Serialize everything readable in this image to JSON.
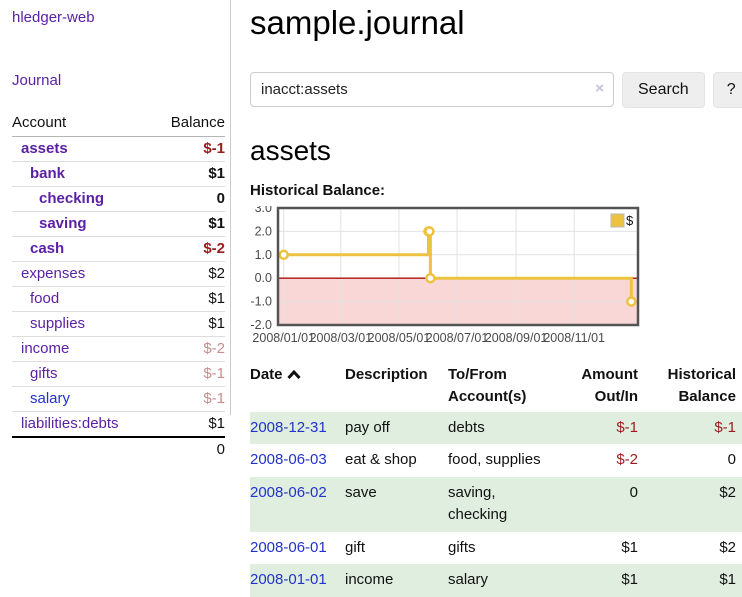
{
  "colors": {
    "purple": "#5b21a5",
    "blue": "#2233cc",
    "neg": "#9e1b1b",
    "negmuted": "#c98d8d",
    "rowgreen": "#dfeede",
    "gold": "#edc240"
  },
  "sidebar": {
    "brand": "hledger-web",
    "journal_label": "Journal",
    "table": {
      "headers": {
        "account": "Account",
        "balance": "Balance"
      },
      "rows": [
        {
          "name": "assets",
          "balance": "$-1",
          "indent": 0,
          "bold": true,
          "balance_style": "neg",
          "link_style": "purple"
        },
        {
          "name": "bank",
          "balance": "$1",
          "indent": 1,
          "bold": true,
          "balance_style": "pos",
          "link_style": "purple"
        },
        {
          "name": "checking",
          "balance": "0",
          "indent": 2,
          "bold": true,
          "balance_style": "pos",
          "link_style": "purple"
        },
        {
          "name": "saving",
          "balance": "$1",
          "indent": 2,
          "bold": true,
          "balance_style": "pos",
          "link_style": "purple"
        },
        {
          "name": "cash",
          "balance": "$-2",
          "indent": 1,
          "bold": true,
          "balance_style": "neg",
          "link_style": "purple"
        },
        {
          "name": "expenses",
          "balance": "$2",
          "indent": 0,
          "bold": false,
          "balance_style": "pos",
          "link_style": "purple"
        },
        {
          "name": "food",
          "balance": "$1",
          "indent": 1,
          "bold": false,
          "balance_style": "pos",
          "link_style": "purple"
        },
        {
          "name": "supplies",
          "balance": "$1",
          "indent": 1,
          "bold": false,
          "balance_style": "pos",
          "link_style": "purple"
        },
        {
          "name": "income",
          "balance": "$-2",
          "indent": 0,
          "bold": false,
          "balance_style": "negmuted",
          "link_style": "purple"
        },
        {
          "name": "gifts",
          "balance": "$-1",
          "indent": 1,
          "bold": false,
          "balance_style": "negmuted",
          "link_style": "purple"
        },
        {
          "name": "salary",
          "balance": "$-1",
          "indent": 1,
          "bold": false,
          "balance_style": "negmuted",
          "link_style": "blue"
        },
        {
          "name": "liabilities:debts",
          "balance": "$1",
          "indent": 0,
          "bold": false,
          "balance_style": "pos",
          "link_style": "purple"
        }
      ],
      "total": "0"
    }
  },
  "header": {
    "title": "sample.journal"
  },
  "search": {
    "query": "inacct:assets",
    "clear_icon": "×",
    "search_label": "Search",
    "help_label": "?"
  },
  "account_page": {
    "title": "assets",
    "chart_label": "Historical Balance:"
  },
  "chart_data": {
    "type": "line",
    "title": "Historical Balance",
    "step": true,
    "series": [
      {
        "name": "$",
        "color": "#edc240",
        "points": [
          {
            "date": "2008-01-01",
            "x": 0,
            "y": 1
          },
          {
            "date": "2008-06-01",
            "x": 152,
            "y": 2
          },
          {
            "date": "2008-06-02",
            "x": 153,
            "y": 2
          },
          {
            "date": "2008-06-03",
            "x": 154,
            "y": 0
          },
          {
            "date": "2008-12-31",
            "x": 365,
            "y": -1
          }
        ]
      }
    ],
    "x_ticks": [
      {
        "v": 0,
        "label": "2008/01/01"
      },
      {
        "v": 60,
        "label": "2008/03/01"
      },
      {
        "v": 121,
        "label": "2008/05/01"
      },
      {
        "v": 182,
        "label": "2008/07/01"
      },
      {
        "v": 244,
        "label": "2008/09/01"
      },
      {
        "v": 305,
        "label": "2008/11/01"
      }
    ],
    "y_ticks": [
      {
        "v": 3,
        "label": "3.0"
      },
      {
        "v": 2,
        "label": "2.0"
      },
      {
        "v": 1,
        "label": "1.0"
      },
      {
        "v": 0,
        "label": "0.0"
      },
      {
        "v": -1,
        "label": "-1.0"
      },
      {
        "v": -2,
        "label": "-2.0"
      }
    ],
    "xlim": [
      -6,
      372
    ],
    "ylim": [
      -2,
      3
    ],
    "grid": true,
    "negative_region_color": "#f9d7d7",
    "zero_line_color": "#aa1111",
    "legend": {
      "label": "$",
      "box_color": "#edc240",
      "position": "top-right"
    }
  },
  "register": {
    "columns": [
      "Date",
      "Description",
      "To/From Account(s)",
      "Amount Out/In",
      "Historical Balance"
    ],
    "sort": "ascending",
    "rows": [
      {
        "date": "2008-12-31",
        "description": "pay off",
        "accounts": "debts",
        "amount": "$-1",
        "balance": "$-1"
      },
      {
        "date": "2008-06-03",
        "description": "eat & shop",
        "accounts": "food, supplies",
        "amount": "$-2",
        "balance": "0"
      },
      {
        "date": "2008-06-02",
        "description": "save",
        "accounts": "saving, checking",
        "amount": "0",
        "balance": "$2"
      },
      {
        "date": "2008-06-01",
        "description": "gift",
        "accounts": "gifts",
        "amount": "$1",
        "balance": "$2"
      },
      {
        "date": "2008-01-01",
        "description": "income",
        "accounts": "salary",
        "amount": "$1",
        "balance": "$1"
      }
    ]
  }
}
